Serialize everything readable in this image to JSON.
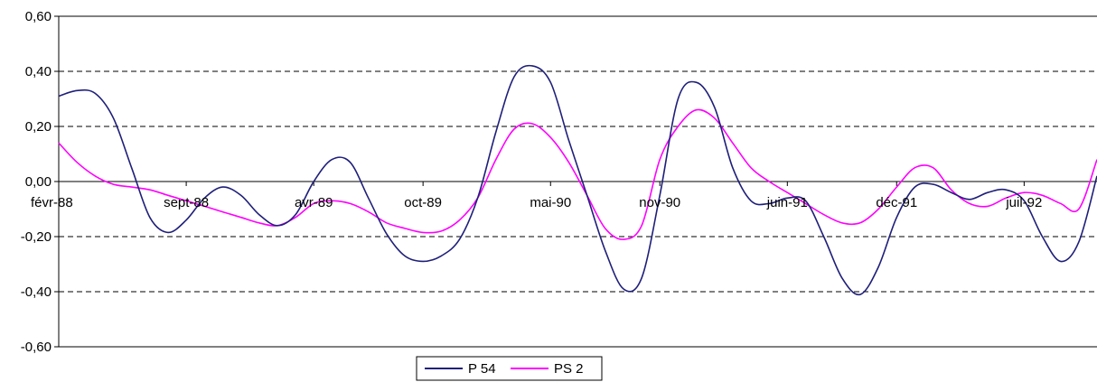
{
  "chart_data": {
    "type": "line",
    "ylim": [
      -0.6,
      0.6
    ],
    "y_ticks": [
      "0,60",
      "0,40",
      "0,20",
      "0,00",
      "-0,20",
      "-0,40",
      "-0,60"
    ],
    "x_tick_labels": [
      "févr-88",
      "sept-88",
      "avr-89",
      "oct-89",
      "mai-90",
      "nov-90",
      "juin-91",
      "déc-91",
      "juil-92"
    ],
    "x_tick_index": [
      0,
      7,
      14,
      20,
      27,
      33,
      40,
      46,
      53
    ],
    "gridlines": "horizontal dashed",
    "legend_position": "bottom",
    "series": [
      {
        "name": "P 54",
        "color": "#1f1f7a",
        "points": [
          [
            0,
            0.31
          ],
          [
            1,
            0.33
          ],
          [
            2,
            0.32
          ],
          [
            3,
            0.23
          ],
          [
            4,
            0.05
          ],
          [
            5,
            -0.13
          ],
          [
            6,
            -0.185
          ],
          [
            7,
            -0.14
          ],
          [
            8,
            -0.06
          ],
          [
            9,
            -0.02
          ],
          [
            10,
            -0.05
          ],
          [
            11,
            -0.12
          ],
          [
            12,
            -0.16
          ],
          [
            13,
            -0.12
          ],
          [
            14,
            0.0
          ],
          [
            15,
            0.08
          ],
          [
            16,
            0.07
          ],
          [
            17,
            -0.06
          ],
          [
            18,
            -0.19
          ],
          [
            19,
            -0.27
          ],
          [
            20,
            -0.29
          ],
          [
            21,
            -0.27
          ],
          [
            22,
            -0.21
          ],
          [
            23,
            -0.06
          ],
          [
            24,
            0.18
          ],
          [
            25,
            0.38
          ],
          [
            26,
            0.42
          ],
          [
            27,
            0.36
          ],
          [
            28,
            0.15
          ],
          [
            29,
            -0.05
          ],
          [
            30,
            -0.25
          ],
          [
            31,
            -0.39
          ],
          [
            32,
            -0.35
          ],
          [
            33,
            -0.05
          ],
          [
            34,
            0.3
          ],
          [
            35,
            0.36
          ],
          [
            36,
            0.27
          ],
          [
            37,
            0.05
          ],
          [
            38,
            -0.07
          ],
          [
            39,
            -0.08
          ],
          [
            40,
            -0.06
          ],
          [
            41,
            -0.07
          ],
          [
            42,
            -0.2
          ],
          [
            43,
            -0.35
          ],
          [
            44,
            -0.41
          ],
          [
            45,
            -0.31
          ],
          [
            46,
            -0.13
          ],
          [
            47,
            -0.02
          ],
          [
            48,
            -0.01
          ],
          [
            49,
            -0.04
          ],
          [
            50,
            -0.065
          ],
          [
            51,
            -0.04
          ],
          [
            52,
            -0.03
          ],
          [
            53,
            -0.07
          ],
          [
            54,
            -0.2
          ],
          [
            55,
            -0.29
          ],
          [
            56,
            -0.22
          ],
          [
            57,
            0.02
          ]
        ]
      },
      {
        "name": "PS 2",
        "color": "#ff00ff",
        "points": [
          [
            0,
            0.14
          ],
          [
            1,
            0.07
          ],
          [
            2,
            0.02
          ],
          [
            3,
            -0.01
          ],
          [
            4,
            -0.02
          ],
          [
            5,
            -0.03
          ],
          [
            6,
            -0.05
          ],
          [
            7,
            -0.07
          ],
          [
            8,
            -0.09
          ],
          [
            9,
            -0.11
          ],
          [
            10,
            -0.13
          ],
          [
            11,
            -0.15
          ],
          [
            12,
            -0.16
          ],
          [
            13,
            -0.13
          ],
          [
            14,
            -0.08
          ],
          [
            15,
            -0.07
          ],
          [
            16,
            -0.08
          ],
          [
            17,
            -0.11
          ],
          [
            18,
            -0.15
          ],
          [
            19,
            -0.17
          ],
          [
            20,
            -0.185
          ],
          [
            21,
            -0.18
          ],
          [
            22,
            -0.14
          ],
          [
            23,
            -0.06
          ],
          [
            24,
            0.08
          ],
          [
            25,
            0.19
          ],
          [
            26,
            0.21
          ],
          [
            27,
            0.16
          ],
          [
            28,
            0.07
          ],
          [
            29,
            -0.05
          ],
          [
            30,
            -0.17
          ],
          [
            31,
            -0.21
          ],
          [
            32,
            -0.16
          ],
          [
            33,
            0.08
          ],
          [
            34,
            0.2
          ],
          [
            35,
            0.26
          ],
          [
            36,
            0.23
          ],
          [
            37,
            0.14
          ],
          [
            38,
            0.05
          ],
          [
            39,
            0.0
          ],
          [
            40,
            -0.04
          ],
          [
            41,
            -0.08
          ],
          [
            42,
            -0.12
          ],
          [
            43,
            -0.15
          ],
          [
            44,
            -0.15
          ],
          [
            45,
            -0.1
          ],
          [
            46,
            -0.02
          ],
          [
            47,
            0.05
          ],
          [
            48,
            0.05
          ],
          [
            49,
            -0.03
          ],
          [
            50,
            -0.08
          ],
          [
            51,
            -0.09
          ],
          [
            52,
            -0.06
          ],
          [
            53,
            -0.04
          ],
          [
            54,
            -0.05
          ],
          [
            55,
            -0.08
          ],
          [
            56,
            -0.1
          ],
          [
            57,
            0.08
          ]
        ]
      }
    ]
  }
}
